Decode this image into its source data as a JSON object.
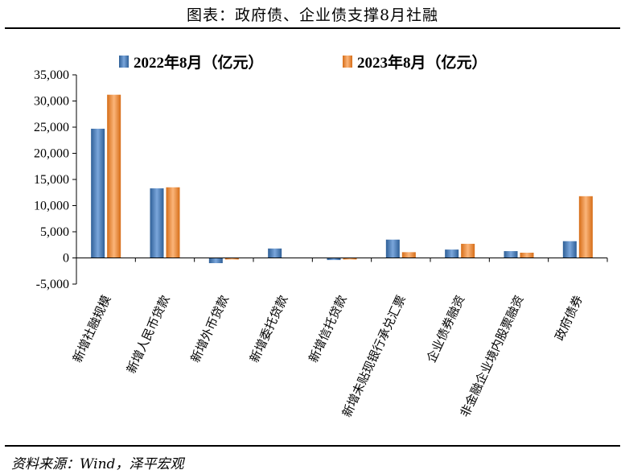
{
  "title": "图表：政府债、企业债支撑8月社融",
  "source": "资料来源：Wind，泽平宏观",
  "chart_data": {
    "type": "bar",
    "categories": [
      "新增社融规模",
      "新增人民币贷款",
      "新增外币贷款",
      "新增委托贷款",
      "新增信托贷款",
      "新增未贴现银行承兑汇票",
      "企业债券融资",
      "非金融企业境内股票融资",
      "政府债券"
    ],
    "series": [
      {
        "name": "2022年8月（亿元）",
        "color": "#4f81bd",
        "values": [
          24700,
          13300,
          -1000,
          1800,
          -400,
          3500,
          1600,
          1300,
          3200
        ]
      },
      {
        "name": "2023年8月（亿元）",
        "color": "#f79646",
        "values": [
          31200,
          13500,
          -300,
          0,
          -300,
          1100,
          2700,
          1000,
          11800
        ]
      }
    ],
    "ylim": [
      -5000,
      35000
    ],
    "yticks": [
      -5000,
      0,
      5000,
      10000,
      15000,
      20000,
      25000,
      30000,
      35000
    ],
    "ytick_labels": [
      "-5,000",
      "0",
      "5,000",
      "10,000",
      "15,000",
      "20,000",
      "25,000",
      "30,000",
      "35,000"
    ],
    "legend_position": "top"
  }
}
